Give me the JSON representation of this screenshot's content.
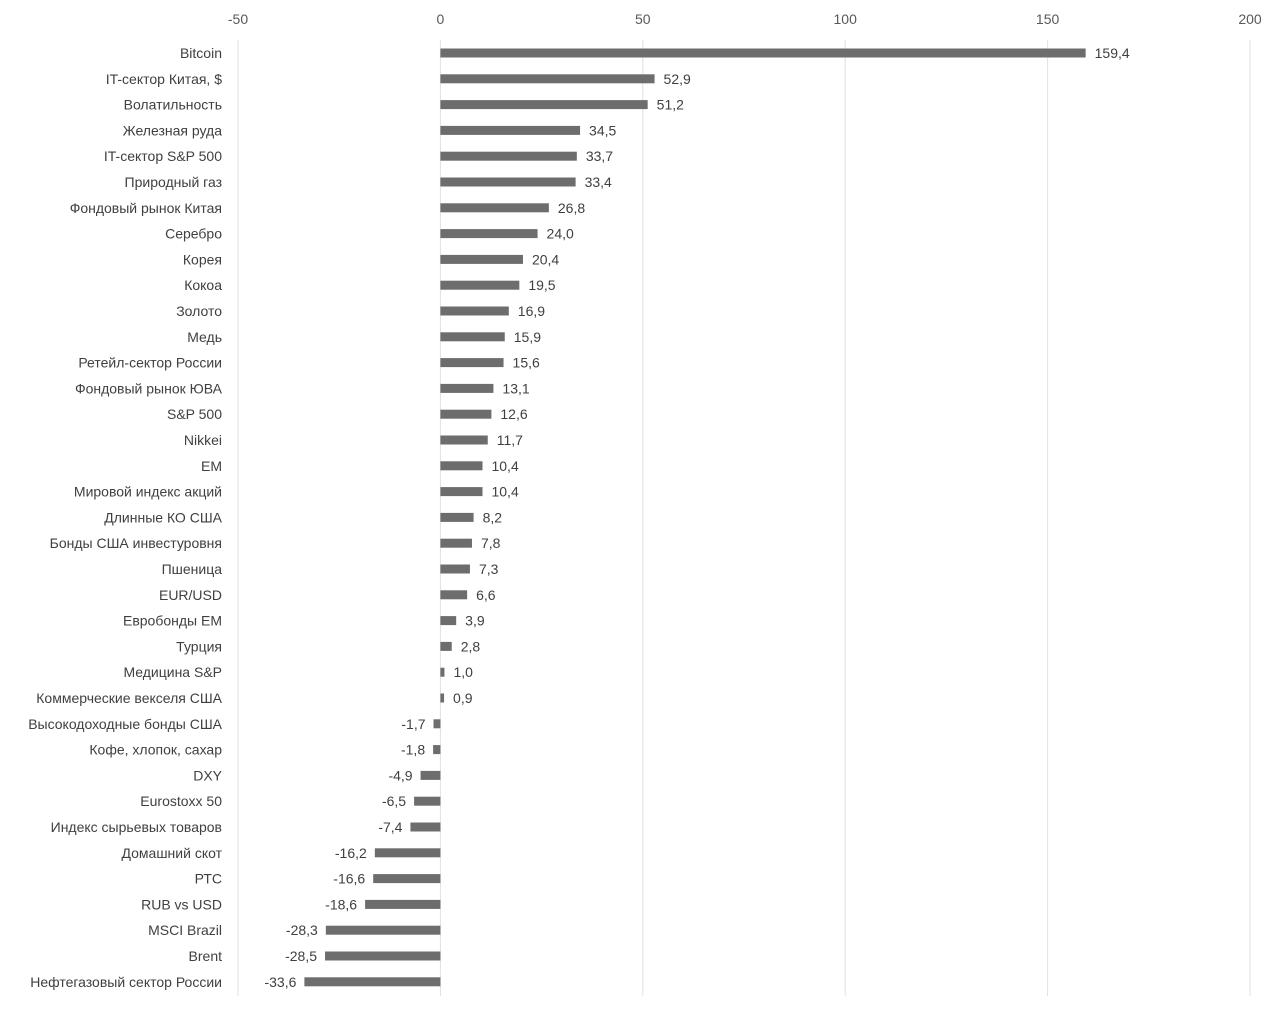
{
  "chart_data": {
    "type": "bar",
    "orientation": "horizontal",
    "categories": [
      "Bitcoin",
      "IT-сектор Китая, $",
      "Волатильность",
      "Железная руда",
      "IT-сектор S&P 500",
      "Природный газ",
      "Фондовый рынок Китая",
      "Серебро",
      "Корея",
      "Кокоа",
      "Золото",
      "Медь",
      "Ретейл-сектор России",
      "Фондовый рынок ЮВА",
      "S&P 500",
      "Nikkei",
      "EM",
      "Мировой индекс акций",
      "Длинные КО США",
      "Бонды США инвестуровня",
      "Пшеница",
      "EUR/USD",
      "Евробонды EM",
      "Турция",
      "Медицина S&P",
      "Коммерческие векселя США",
      "Высокодоходные бонды США",
      "Кофе, хлопок, сахар",
      "DXY",
      "Eurostoxx 50",
      "Индекс сырьевых товаров",
      "Домашний скот",
      "РТС",
      "RUB vs USD",
      "MSCI Brazil",
      "Brent",
      "Нефтегазовый сектор России"
    ],
    "values": [
      159.4,
      52.9,
      51.2,
      34.5,
      33.7,
      33.4,
      26.8,
      24.0,
      20.4,
      19.5,
      16.9,
      15.9,
      15.6,
      13.1,
      12.6,
      11.7,
      10.4,
      10.4,
      8.2,
      7.8,
      7.3,
      6.6,
      3.9,
      2.8,
      1.0,
      0.9,
      -1.7,
      -1.8,
      -4.9,
      -6.5,
      -7.4,
      -16.2,
      -16.6,
      -18.6,
      -28.3,
      -28.5,
      -33.6
    ],
    "value_labels": [
      "159,4",
      "52,9",
      "51,2",
      "34,5",
      "33,7",
      "33,4",
      "26,8",
      "24,0",
      "20,4",
      "19,5",
      "16,9",
      "15,9",
      "15,6",
      "13,1",
      "12,6",
      "11,7",
      "10,4",
      "10,4",
      "8,2",
      "7,8",
      "7,3",
      "6,6",
      "3,9",
      "2,8",
      "1,0",
      "0,9",
      "-1,7",
      "-1,8",
      "-4,9",
      "-6,5",
      "-7,4",
      "-16,2",
      "-16,6",
      "-18,6",
      "-28,3",
      "-28,5",
      "-33,6"
    ],
    "xlim": [
      -50,
      200
    ],
    "x_ticks": [
      -50,
      0,
      50,
      100,
      150,
      200
    ],
    "x_tick_labels": [
      "-50",
      "0",
      "50",
      "100",
      "150",
      "200"
    ],
    "axis_position": "top",
    "grid": true,
    "bar_color": "#6d6d6d",
    "title": "",
    "xlabel": "",
    "ylabel": ""
  }
}
